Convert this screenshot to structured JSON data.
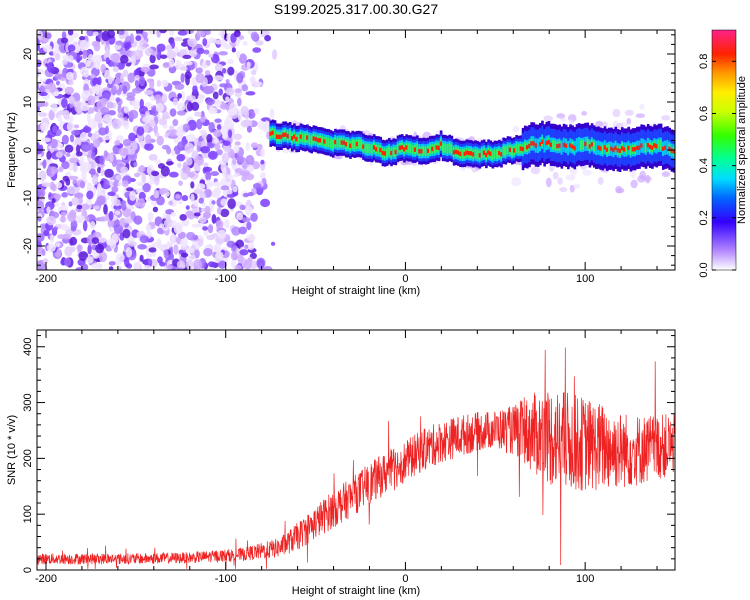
{
  "title": "S199.2025.317.00.30.G27",
  "chart_data": [
    {
      "type": "heatmap",
      "xlabel": "Height of straight line (km)",
      "ylabel": "Frequency (Hz)",
      "xlim": [
        -205,
        150
      ],
      "ylim": [
        -25,
        25
      ],
      "x_ticks": [
        -200,
        -100,
        0,
        100
      ],
      "y_ticks": [
        -20,
        -10,
        0,
        10,
        20
      ],
      "colorbar": {
        "label": "Normalized spectral amplitude",
        "range": [
          0,
          0.92
        ],
        "ticks": [
          0.0,
          0.2,
          0.4,
          0.6,
          0.8
        ]
      },
      "ridge": {
        "description": "Dominant frequency ridge (Hz) vs height (km)",
        "x": [
          -75,
          -70,
          -60,
          -50,
          -40,
          -30,
          -20,
          -10,
          0,
          10,
          20,
          30,
          40,
          50,
          60,
          70,
          80,
          90,
          100,
          110,
          120,
          130,
          140,
          150
        ],
        "y": [
          3.5,
          3.0,
          2.5,
          2.0,
          1.5,
          1.2,
          0.5,
          -0.5,
          0.5,
          -0.2,
          1.0,
          -0.8,
          -1.0,
          -0.8,
          0.0,
          1.0,
          1.5,
          0.5,
          1.0,
          0.5,
          0.0,
          0.5,
          1.0,
          0.0
        ]
      }
    },
    {
      "type": "line",
      "xlabel": "Height of straight line (km)",
      "ylabel": "SNR (10 * v/v)",
      "xlim": [
        -205,
        150
      ],
      "ylim": [
        0,
        430
      ],
      "x_ticks": [
        -200,
        -100,
        0,
        100
      ],
      "y_ticks": [
        0,
        100,
        200,
        300,
        400
      ],
      "series": [
        {
          "color": "#ee2222",
          "envelope_x": [
            -205,
            -180,
            -150,
            -120,
            -90,
            -70,
            -60,
            -50,
            -40,
            -30,
            -20,
            -10,
            0,
            10,
            20,
            30,
            40,
            50,
            60,
            70,
            80,
            90,
            100,
            110,
            120,
            130,
            140,
            150
          ],
          "envelope_y": [
            20,
            20,
            20,
            22,
            28,
            40,
            60,
            85,
            110,
            130,
            155,
            175,
            195,
            215,
            230,
            240,
            248,
            252,
            250,
            245,
            240,
            230,
            225,
            220,
            215,
            215,
            220,
            225
          ],
          "noise_amplitude": [
            10,
            10,
            10,
            10,
            12,
            18,
            25,
            30,
            35,
            35,
            38,
            38,
            38,
            38,
            38,
            38,
            35,
            35,
            45,
            70,
            90,
            90,
            85,
            80,
            70,
            65,
            60,
            55
          ]
        }
      ]
    }
  ]
}
